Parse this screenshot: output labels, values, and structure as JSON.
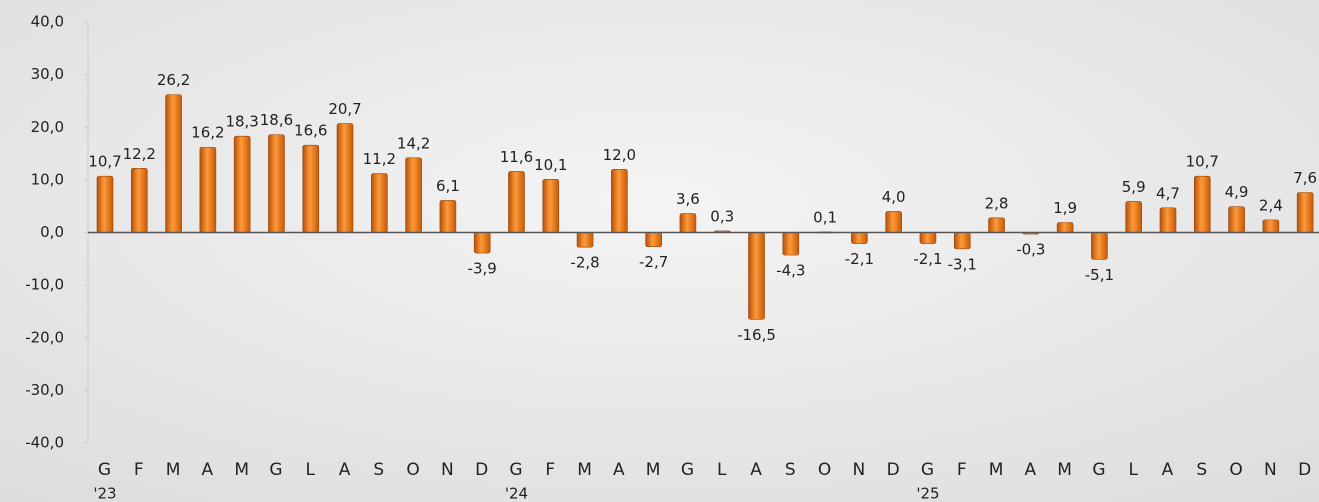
{
  "chart_data": {
    "type": "bar",
    "categories": [
      "G",
      "F",
      "M",
      "A",
      "M",
      "G",
      "L",
      "A",
      "S",
      "O",
      "N",
      "D",
      "G",
      "F",
      "M",
      "A",
      "M",
      "G",
      "L",
      "A",
      "S",
      "O",
      "N",
      "D",
      "G",
      "F",
      "M",
      "A",
      "M",
      "G",
      "L",
      "A",
      "S",
      "O",
      "N",
      "D"
    ],
    "year_labels": [
      "'23",
      null,
      null,
      null,
      null,
      null,
      null,
      null,
      null,
      null,
      null,
      null,
      "'24",
      null,
      null,
      null,
      null,
      null,
      null,
      null,
      null,
      null,
      null,
      null,
      "'25",
      null,
      null,
      null,
      null,
      null,
      null,
      null,
      null,
      null,
      null,
      null
    ],
    "values": [
      10.7,
      12.2,
      26.2,
      16.2,
      18.3,
      18.6,
      16.6,
      20.7,
      11.2,
      14.2,
      6.1,
      -3.9,
      11.6,
      10.1,
      -2.8,
      12.0,
      -2.7,
      3.6,
      0.3,
      -16.5,
      -4.3,
      0.1,
      -2.1,
      4.0,
      -2.1,
      -3.1,
      2.8,
      -0.3,
      1.9,
      -5.1,
      5.9,
      4.7,
      10.7,
      4.9,
      2.4,
      7.6
    ],
    "value_labels": [
      "10,7",
      "12,2",
      "26,2",
      "16,2",
      "18,3",
      "18,6",
      "16,6",
      "20,7",
      "11,2",
      "14,2",
      "6,1",
      "-3,9",
      "11,6",
      "10,1",
      "-2,8",
      "12,0",
      "-2,7",
      "3,6",
      "0,3",
      "-16,5",
      "-4,3",
      "0,1",
      "-2,1",
      "4,0",
      "-2,1",
      "-3,1",
      "2,8",
      "-0,3",
      "1,9",
      "-5,1",
      "5,9",
      "4,7",
      "10,7",
      "4,9",
      "2,4",
      "7,6"
    ],
    "color": "#e8780f",
    "ylim": [
      -40,
      40
    ],
    "yticks": [
      {
        "value": -40,
        "label": "-40,0"
      },
      {
        "value": -30,
        "label": "-30,0"
      },
      {
        "value": -20,
        "label": "-20,0"
      },
      {
        "value": -10,
        "label": "-10,0"
      },
      {
        "value": 0,
        "label": "0,0"
      },
      {
        "value": 10,
        "label": "10,0"
      },
      {
        "value": 20,
        "label": "20,0"
      },
      {
        "value": 30,
        "label": "30,0"
      },
      {
        "value": 40,
        "label": "40,0"
      }
    ]
  }
}
